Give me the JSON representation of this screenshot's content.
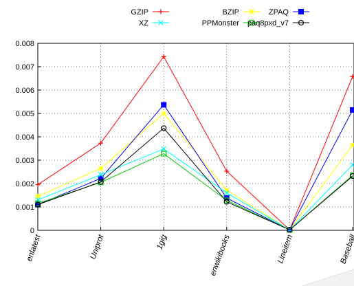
{
  "chart_data": {
    "type": "line",
    "title": "",
    "xlabel": "",
    "ylabel": "",
    "categories": [
      "enlatest",
      "Uniprot",
      "1gig",
      "enwikibooks",
      "Lineitem",
      "Baseball"
    ],
    "ylim": [
      0,
      0.008
    ],
    "yticks": [
      "0",
      "0.001",
      "0.002",
      "0.003",
      "0.004",
      "0.005",
      "0.006",
      "0.007",
      "0.008"
    ],
    "grid": true,
    "legend_position": "top",
    "series": [
      {
        "name": "GZIP",
        "color": "#ff0000",
        "marker": "plus",
        "values": [
          0.00195,
          0.00373,
          0.00743,
          0.00253,
          2e-05,
          0.00658
        ]
      },
      {
        "name": "BZIP",
        "color": "#ffff00",
        "marker": "star",
        "values": [
          0.00145,
          0.00265,
          0.005,
          0.00172,
          2e-05,
          0.00365
        ]
      },
      {
        "name": "ZPAQ",
        "color": "#0000ff",
        "marker": "filled-square",
        "values": [
          0.0011,
          0.00222,
          0.00537,
          0.00138,
          2e-05,
          0.00515
        ]
      },
      {
        "name": "XZ",
        "color": "#00ffff",
        "marker": "cross",
        "values": [
          0.0013,
          0.00238,
          0.00348,
          0.0016,
          2e-05,
          0.0028
        ]
      },
      {
        "name": "PPMonster",
        "color": "#00cc00",
        "marker": "open-square",
        "values": [
          0.00115,
          0.00205,
          0.00328,
          0.00128,
          2e-05,
          0.00235
        ]
      },
      {
        "name": "paq8pxd_v7",
        "color": "#000000",
        "marker": "open-circle",
        "values": [
          0.0011,
          0.00207,
          0.00437,
          0.00122,
          2e-05,
          0.00232
        ]
      }
    ]
  }
}
